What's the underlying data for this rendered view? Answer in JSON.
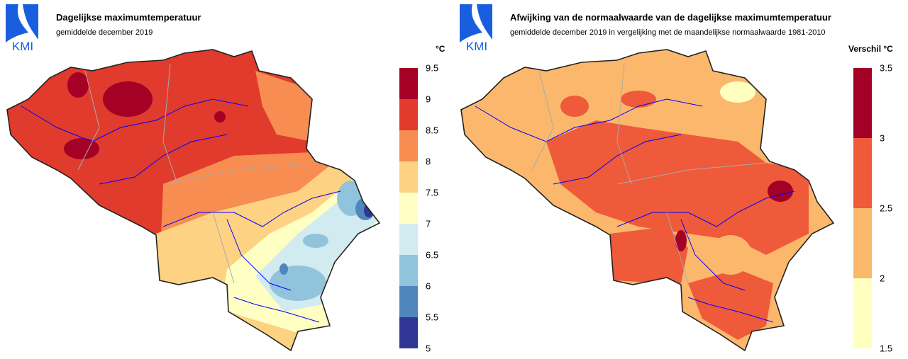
{
  "logo_text": "KMI",
  "left": {
    "title": "Dagelijkse maximumtemperatuur",
    "subtitle": "gemiddelde december 2019",
    "unit": "°C",
    "legend": {
      "ticks": [
        "9.5",
        "9",
        "8.5",
        "8",
        "7.5",
        "7",
        "6.5",
        "6",
        "5.5",
        "5"
      ],
      "colors": [
        "#a50026",
        "#e03b2c",
        "#f88d52",
        "#fed283",
        "#ffffc4",
        "#d1ebf1",
        "#91c3dd",
        "#4f86bb",
        "#313695"
      ]
    }
  },
  "right": {
    "title": "Afwijking van de normaalwaarde van de dagelijkse maximumtemperatuur",
    "subtitle": "gemiddelde december 2019 in vergelijking met de maandelijkse normaalwaarde 1981-2010",
    "unit": "Verschil °C",
    "legend": {
      "ticks": [
        "3.5",
        "3",
        "2.5",
        "2",
        "1.5"
      ],
      "colors": [
        "#a50026",
        "#ee5a3a",
        "#fbb86d",
        "#ffffc0"
      ]
    }
  }
}
